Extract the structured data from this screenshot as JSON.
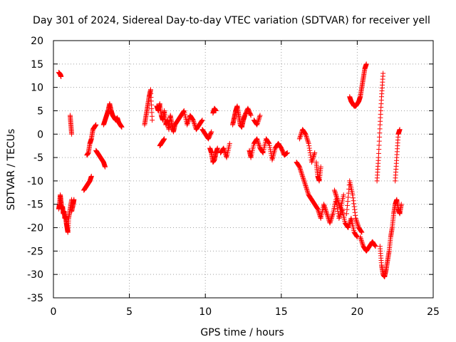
{
  "chart_data": {
    "type": "scatter",
    "title": "Day 301 of 2024, Sidereal Day-to-day VTEC variation (SDTVAR) for receiver yell",
    "xlabel": "GPS time / hours",
    "ylabel": "SDTVAR / TECUs",
    "xlim": [
      0,
      25
    ],
    "ylim": [
      -35,
      20
    ],
    "xticks": [
      0,
      5,
      10,
      15,
      20,
      25
    ],
    "yticks": [
      -35,
      -30,
      -25,
      -20,
      -15,
      -10,
      -5,
      0,
      5,
      10,
      15,
      20
    ],
    "grid": true,
    "marker": "+",
    "color": "#ff0000",
    "series": [
      {
        "name": "SDTVAR",
        "segments": [
          {
            "x": [
              0.35,
              0.45,
              0.5
            ],
            "y": [
              13.2,
              12.8,
              12.3
            ]
          },
          {
            "x": [
              0.35,
              0.4,
              0.45,
              0.5,
              0.55,
              0.6,
              0.65,
              0.7,
              0.75,
              0.8,
              0.85,
              0.9,
              0.95,
              1.0,
              1.1,
              1.2
            ],
            "y": [
              -16,
              -15,
              -13,
              -14.5,
              -16,
              -15.5,
              -17,
              -16.5,
              -18,
              -17.5,
              -19,
              -20,
              -21,
              -18,
              -16,
              -14
            ]
          },
          {
            "x": [
              1.1,
              1.15,
              1.2
            ],
            "y": [
              4,
              2,
              0
            ]
          },
          {
            "x": [
              1.2,
              1.3,
              1.35
            ],
            "y": [
              -16.5,
              -15,
              -14
            ]
          },
          {
            "x": [
              2.0,
              2.1,
              2.2,
              2.3,
              2.4,
              2.5
            ],
            "y": [
              -12,
              -11.5,
              -11,
              -10.5,
              -10,
              -9
            ]
          },
          {
            "x": [
              2.2,
              2.3,
              2.4,
              2.5,
              2.6,
              2.7,
              2.8
            ],
            "y": [
              -4.5,
              -4,
              -2,
              -1,
              1,
              1.5,
              2
            ]
          },
          {
            "x": [
              2.8,
              2.9,
              3.0,
              3.1,
              3.2,
              3.3,
              3.4
            ],
            "y": [
              -3.5,
              -4,
              -4.5,
              -5,
              -5.5,
              -6,
              -7
            ]
          },
          {
            "x": [
              3.3,
              3.4,
              3.5,
              3.6,
              3.7,
              3.8,
              3.9,
              4.0,
              4.1,
              4.2,
              4.3,
              4.4,
              4.5
            ],
            "y": [
              2,
              3,
              4,
              5,
              6.5,
              5,
              4,
              3.5,
              3,
              3.5,
              2.5,
              2,
              1.5
            ]
          },
          {
            "x": [
              6.0,
              6.1,
              6.2,
              6.3,
              6.4,
              6.5
            ],
            "y": [
              2,
              4,
              6,
              8,
              9.5,
              3
            ]
          },
          {
            "x": [
              6.8,
              6.9,
              7.0,
              7.1,
              7.2,
              7.3,
              7.4,
              7.5,
              7.6,
              7.7,
              7.8,
              7.9,
              8.0,
              8.2,
              8.4,
              8.6,
              8.8,
              9.0,
              9.2,
              9.4,
              9.6,
              9.8
            ],
            "y": [
              6,
              5,
              6.5,
              4,
              3,
              5,
              2,
              3,
              1,
              4,
              2,
              0.5,
              2,
              3,
              4,
              5,
              2,
              4,
              3,
              1,
              2,
              3
            ]
          },
          {
            "x": [
              7.0,
              7.1,
              7.2,
              7.3
            ],
            "y": [
              -2.5,
              -2,
              -1.5,
              -1
            ]
          },
          {
            "x": [
              9.8,
              10.0,
              10.2,
              10.4
            ],
            "y": [
              1,
              0,
              -1,
              0.5
            ]
          },
          {
            "x": [
              10.3,
              10.4,
              10.5,
              10.6,
              10.7,
              10.8
            ],
            "y": [
              -3,
              -4,
              -6,
              -5.5,
              -4,
              -3
            ]
          },
          {
            "x": [
              10.5,
              10.6,
              10.7
            ],
            "y": [
              4.5,
              5.5,
              5
            ]
          },
          {
            "x": [
              11.0,
              11.2,
              11.4,
              11.6
            ],
            "y": [
              -4,
              -3,
              -5,
              -2
            ]
          },
          {
            "x": [
              11.8,
              11.9,
              12.0,
              12.1,
              12.2,
              12.3,
              12.4,
              12.5,
              12.6,
              12.8,
              13.0
            ],
            "y": [
              2,
              3.5,
              5,
              6,
              4,
              2,
              1.5,
              3,
              4,
              5.5,
              4
            ]
          },
          {
            "x": [
              12.9,
              13.0,
              13.2,
              13.4,
              13.6,
              13.8,
              14.0,
              14.2,
              14.4,
              14.6,
              14.8,
              15.0,
              15.2,
              15.4
            ],
            "y": [
              -3.5,
              -5,
              -2,
              -1,
              -3,
              -4,
              -1,
              -2,
              -5.5,
              -3,
              -2,
              -3,
              -4.5,
              -4
            ]
          },
          {
            "x": [
              13.2,
              13.4,
              13.6
            ],
            "y": [
              3,
              2,
              4
            ]
          },
          {
            "x": [
              16.0,
              16.2,
              16.4,
              16.6,
              16.8,
              17.0,
              17.2,
              17.4,
              17.6,
              17.8,
              18.0,
              18.2,
              18.4,
              18.6,
              18.8,
              19.0,
              19.2,
              19.4,
              19.6,
              19.8,
              20.0
            ],
            "y": [
              -6,
              -7,
              -9,
              -11,
              -13,
              -14,
              -15,
              -16,
              -18,
              -15,
              -17,
              -19,
              -17,
              -14,
              -18,
              -16,
              -19,
              -20,
              -18,
              -21,
              -22
            ]
          },
          {
            "x": [
              16.2,
              16.4,
              16.6,
              16.8,
              17.0,
              17.2
            ],
            "y": [
              -1,
              1,
              0,
              -2,
              -6,
              -4
            ]
          },
          {
            "x": [
              17.3,
              17.4,
              17.5,
              17.6
            ],
            "y": [
              -6,
              -9,
              -10,
              -7
            ]
          },
          {
            "x": [
              18.5,
              18.7,
              18.9,
              19.1
            ],
            "y": [
              -12,
              -14,
              -16,
              -13
            ]
          },
          {
            "x": [
              19.3,
              19.5,
              19.7,
              19.9,
              20.1,
              20.3
            ],
            "y": [
              -17,
              -10,
              -13,
              -18,
              -20,
              -21
            ]
          },
          {
            "x": [
              19.5,
              19.6,
              19.7,
              19.8,
              19.9,
              20.0,
              20.1,
              20.2,
              20.3,
              20.4,
              20.5,
              20.6
            ],
            "y": [
              8,
              7,
              6.5,
              6,
              6,
              6.5,
              7,
              8,
              10,
              12,
              14,
              15
            ]
          },
          {
            "x": [
              20.2,
              20.4,
              20.6,
              20.8,
              21.0,
              21.2
            ],
            "y": [
              -22,
              -24,
              -25,
              -24,
              -23,
              -24
            ]
          },
          {
            "x": [
              21.3,
              21.4,
              21.5,
              21.6,
              21.7
            ],
            "y": [
              -10,
              -5,
              2,
              8,
              13
            ]
          },
          {
            "x": [
              21.5,
              21.6,
              21.7,
              21.8,
              21.9,
              22.0,
              22.1,
              22.2,
              22.3,
              22.4,
              22.5,
              22.6,
              22.7,
              22.8,
              22.9
            ],
            "y": [
              -24,
              -28,
              -30,
              -30.5,
              -29,
              -27,
              -25,
              -22,
              -20,
              -17,
              -15,
              -14,
              -16,
              -17,
              -15
            ]
          },
          {
            "x": [
              22.5,
              22.6,
              22.7,
              22.8
            ],
            "y": [
              -10,
              -5,
              0,
              1
            ]
          }
        ]
      }
    ]
  }
}
